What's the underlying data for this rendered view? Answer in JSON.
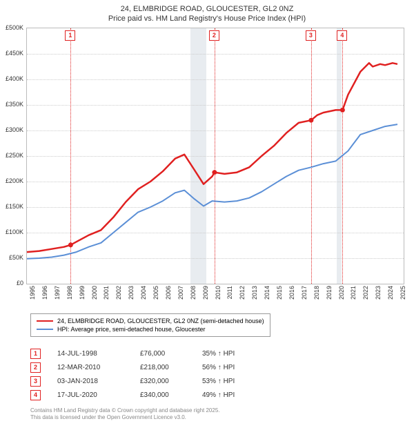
{
  "title_line1": "24, ELMBRIDGE ROAD, GLOUCESTER, GL2 0NZ",
  "title_line2": "Price paid vs. HM Land Registry's House Price Index (HPI)",
  "chart": {
    "type": "line",
    "x_min": 1995,
    "x_max": 2025.5,
    "y_min": 0,
    "y_max": 500000,
    "y_ticks": [
      0,
      50000,
      100000,
      150000,
      200000,
      250000,
      300000,
      350000,
      400000,
      450000,
      500000
    ],
    "y_tick_labels": [
      "£0",
      "£50K",
      "£100K",
      "£150K",
      "£200K",
      "£250K",
      "£300K",
      "£350K",
      "£400K",
      "£450K",
      "£500K"
    ],
    "x_ticks": [
      1995,
      1996,
      1997,
      1998,
      1999,
      2000,
      2001,
      2002,
      2003,
      2004,
      2005,
      2006,
      2007,
      2008,
      2009,
      2010,
      2011,
      2012,
      2013,
      2014,
      2015,
      2016,
      2017,
      2018,
      2019,
      2020,
      2021,
      2022,
      2023,
      2024,
      2025
    ],
    "background_color": "#ffffff",
    "grid_color": "#cccccc",
    "recession_fill": "#e8ecf0",
    "recession_bands": [
      {
        "from": 2008.25,
        "to": 2009.5
      },
      {
        "from": 2020.1,
        "to": 2020.45
      }
    ],
    "series": [
      {
        "name": "price_paid",
        "color": "#e02020",
        "width": 2.5,
        "points": [
          [
            1995,
            62000
          ],
          [
            1996,
            64000
          ],
          [
            1997,
            68000
          ],
          [
            1998,
            72000
          ],
          [
            1998.54,
            76000
          ],
          [
            1999,
            82000
          ],
          [
            2000,
            95000
          ],
          [
            2001,
            105000
          ],
          [
            2002,
            130000
          ],
          [
            2003,
            160000
          ],
          [
            2004,
            185000
          ],
          [
            2005,
            200000
          ],
          [
            2006,
            220000
          ],
          [
            2007,
            245000
          ],
          [
            2007.75,
            253000
          ],
          [
            2008.5,
            225000
          ],
          [
            2009.3,
            195000
          ],
          [
            2010,
            210000
          ],
          [
            2010.19,
            218000
          ],
          [
            2011,
            215000
          ],
          [
            2012,
            218000
          ],
          [
            2013,
            228000
          ],
          [
            2014,
            250000
          ],
          [
            2015,
            270000
          ],
          [
            2016,
            295000
          ],
          [
            2017,
            315000
          ],
          [
            2018.01,
            320000
          ],
          [
            2018.5,
            330000
          ],
          [
            2019,
            335000
          ],
          [
            2020,
            340000
          ],
          [
            2020.55,
            340000
          ],
          [
            2021,
            370000
          ],
          [
            2022,
            415000
          ],
          [
            2022.7,
            432000
          ],
          [
            2023,
            425000
          ],
          [
            2023.6,
            430000
          ],
          [
            2024,
            428000
          ],
          [
            2024.6,
            432000
          ],
          [
            2025,
            430000
          ]
        ]
      },
      {
        "name": "hpi",
        "color": "#5b8fd6",
        "width": 2,
        "points": [
          [
            1995,
            49000
          ],
          [
            1996,
            50000
          ],
          [
            1997,
            52000
          ],
          [
            1998,
            56000
          ],
          [
            1999,
            62000
          ],
          [
            2000,
            72000
          ],
          [
            2001,
            80000
          ],
          [
            2002,
            100000
          ],
          [
            2003,
            120000
          ],
          [
            2004,
            140000
          ],
          [
            2005,
            150000
          ],
          [
            2006,
            162000
          ],
          [
            2007,
            178000
          ],
          [
            2007.75,
            183000
          ],
          [
            2008.5,
            167000
          ],
          [
            2009.3,
            152000
          ],
          [
            2010,
            162000
          ],
          [
            2011,
            160000
          ],
          [
            2012,
            162000
          ],
          [
            2013,
            168000
          ],
          [
            2014,
            180000
          ],
          [
            2015,
            195000
          ],
          [
            2016,
            210000
          ],
          [
            2017,
            222000
          ],
          [
            2018,
            228000
          ],
          [
            2019,
            235000
          ],
          [
            2020,
            240000
          ],
          [
            2021,
            260000
          ],
          [
            2022,
            292000
          ],
          [
            2023,
            300000
          ],
          [
            2024,
            308000
          ],
          [
            2025,
            312000
          ]
        ]
      }
    ],
    "transaction_markers": [
      {
        "n": "1",
        "x": 1998.54,
        "y": 76000
      },
      {
        "n": "2",
        "x": 2010.19,
        "y": 218000
      },
      {
        "n": "3",
        "x": 2018.01,
        "y": 320000
      },
      {
        "n": "4",
        "x": 2020.55,
        "y": 340000
      }
    ]
  },
  "legend": {
    "items": [
      {
        "color": "#e02020",
        "width": 2.5,
        "label": "24, ELMBRIDGE ROAD, GLOUCESTER, GL2 0NZ (semi-detached house)"
      },
      {
        "color": "#5b8fd6",
        "width": 2,
        "label": "HPI: Average price, semi-detached house, Gloucester"
      }
    ]
  },
  "transactions": [
    {
      "n": "1",
      "date": "14-JUL-1998",
      "price": "£76,000",
      "pct": "35% ↑ HPI"
    },
    {
      "n": "2",
      "date": "12-MAR-2010",
      "price": "£218,000",
      "pct": "56% ↑ HPI"
    },
    {
      "n": "3",
      "date": "03-JAN-2018",
      "price": "£320,000",
      "pct": "53% ↑ HPI"
    },
    {
      "n": "4",
      "date": "17-JUL-2020",
      "price": "£340,000",
      "pct": "49% ↑ HPI"
    }
  ],
  "credit_line1": "Contains HM Land Registry data © Crown copyright and database right 2025.",
  "credit_line2": "This data is licensed under the Open Government Licence v3.0."
}
